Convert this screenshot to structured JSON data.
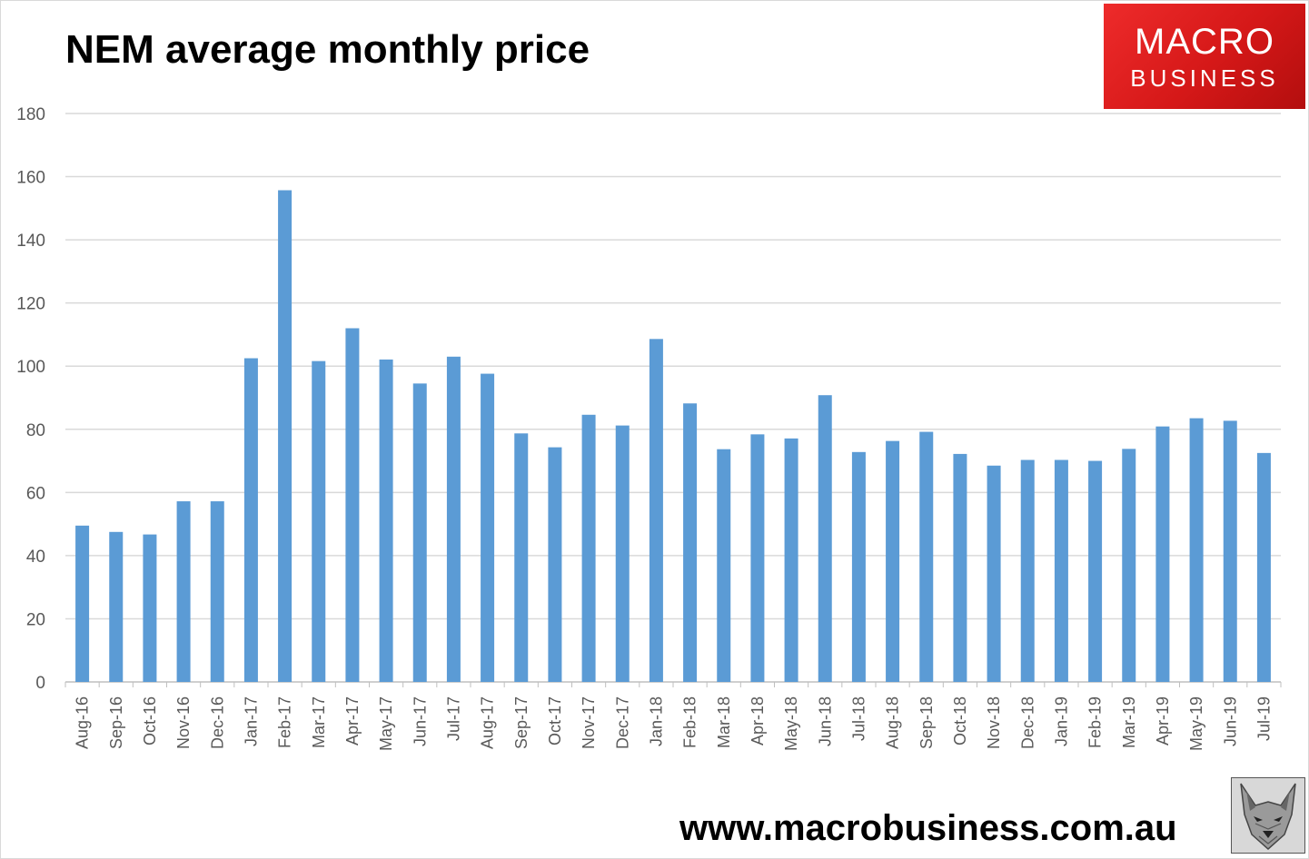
{
  "header": {
    "title": "NEM average monthly price"
  },
  "logo": {
    "line1": "MACRO",
    "line2": "BUSINESS"
  },
  "footer": {
    "website": "www.macrobusiness.com.au",
    "mascot_icon": "wolf-head-icon"
  },
  "colors": {
    "bar": "#5b9bd5",
    "grid": "#d9d9d9",
    "logo": "#e02020"
  },
  "chart_data": {
    "type": "bar",
    "title": "NEM average monthly price",
    "xlabel": "",
    "ylabel": "",
    "ylim": [
      0,
      180
    ],
    "yticks": [
      0,
      20,
      40,
      60,
      80,
      100,
      120,
      140,
      160,
      180
    ],
    "grid": true,
    "categories": [
      "Aug-16",
      "Sep-16",
      "Oct-16",
      "Nov-16",
      "Dec-16",
      "Jan-17",
      "Feb-17",
      "Mar-17",
      "Apr-17",
      "May-17",
      "Jun-17",
      "Jul-17",
      "Aug-17",
      "Sep-17",
      "Oct-17",
      "Nov-17",
      "Dec-17",
      "Jan-18",
      "Feb-18",
      "Mar-18",
      "Apr-18",
      "May-18",
      "Jun-18",
      "Jul-18",
      "Aug-18",
      "Sep-18",
      "Oct-18",
      "Nov-18",
      "Dec-18",
      "Jan-19",
      "Feb-19",
      "Mar-19",
      "Apr-19",
      "May-19",
      "Jun-19",
      "Jul-19"
    ],
    "values": [
      49.5,
      47.5,
      46.7,
      57.2,
      57.2,
      102.5,
      155.7,
      101.6,
      112.0,
      102.1,
      94.5,
      103.0,
      97.6,
      78.7,
      74.3,
      84.6,
      81.2,
      108.6,
      88.2,
      73.7,
      78.4,
      77.1,
      90.8,
      72.8,
      76.3,
      79.2,
      72.2,
      68.5,
      70.3,
      70.3,
      70.0,
      73.8,
      80.9,
      83.5,
      82.7,
      72.5
    ]
  }
}
